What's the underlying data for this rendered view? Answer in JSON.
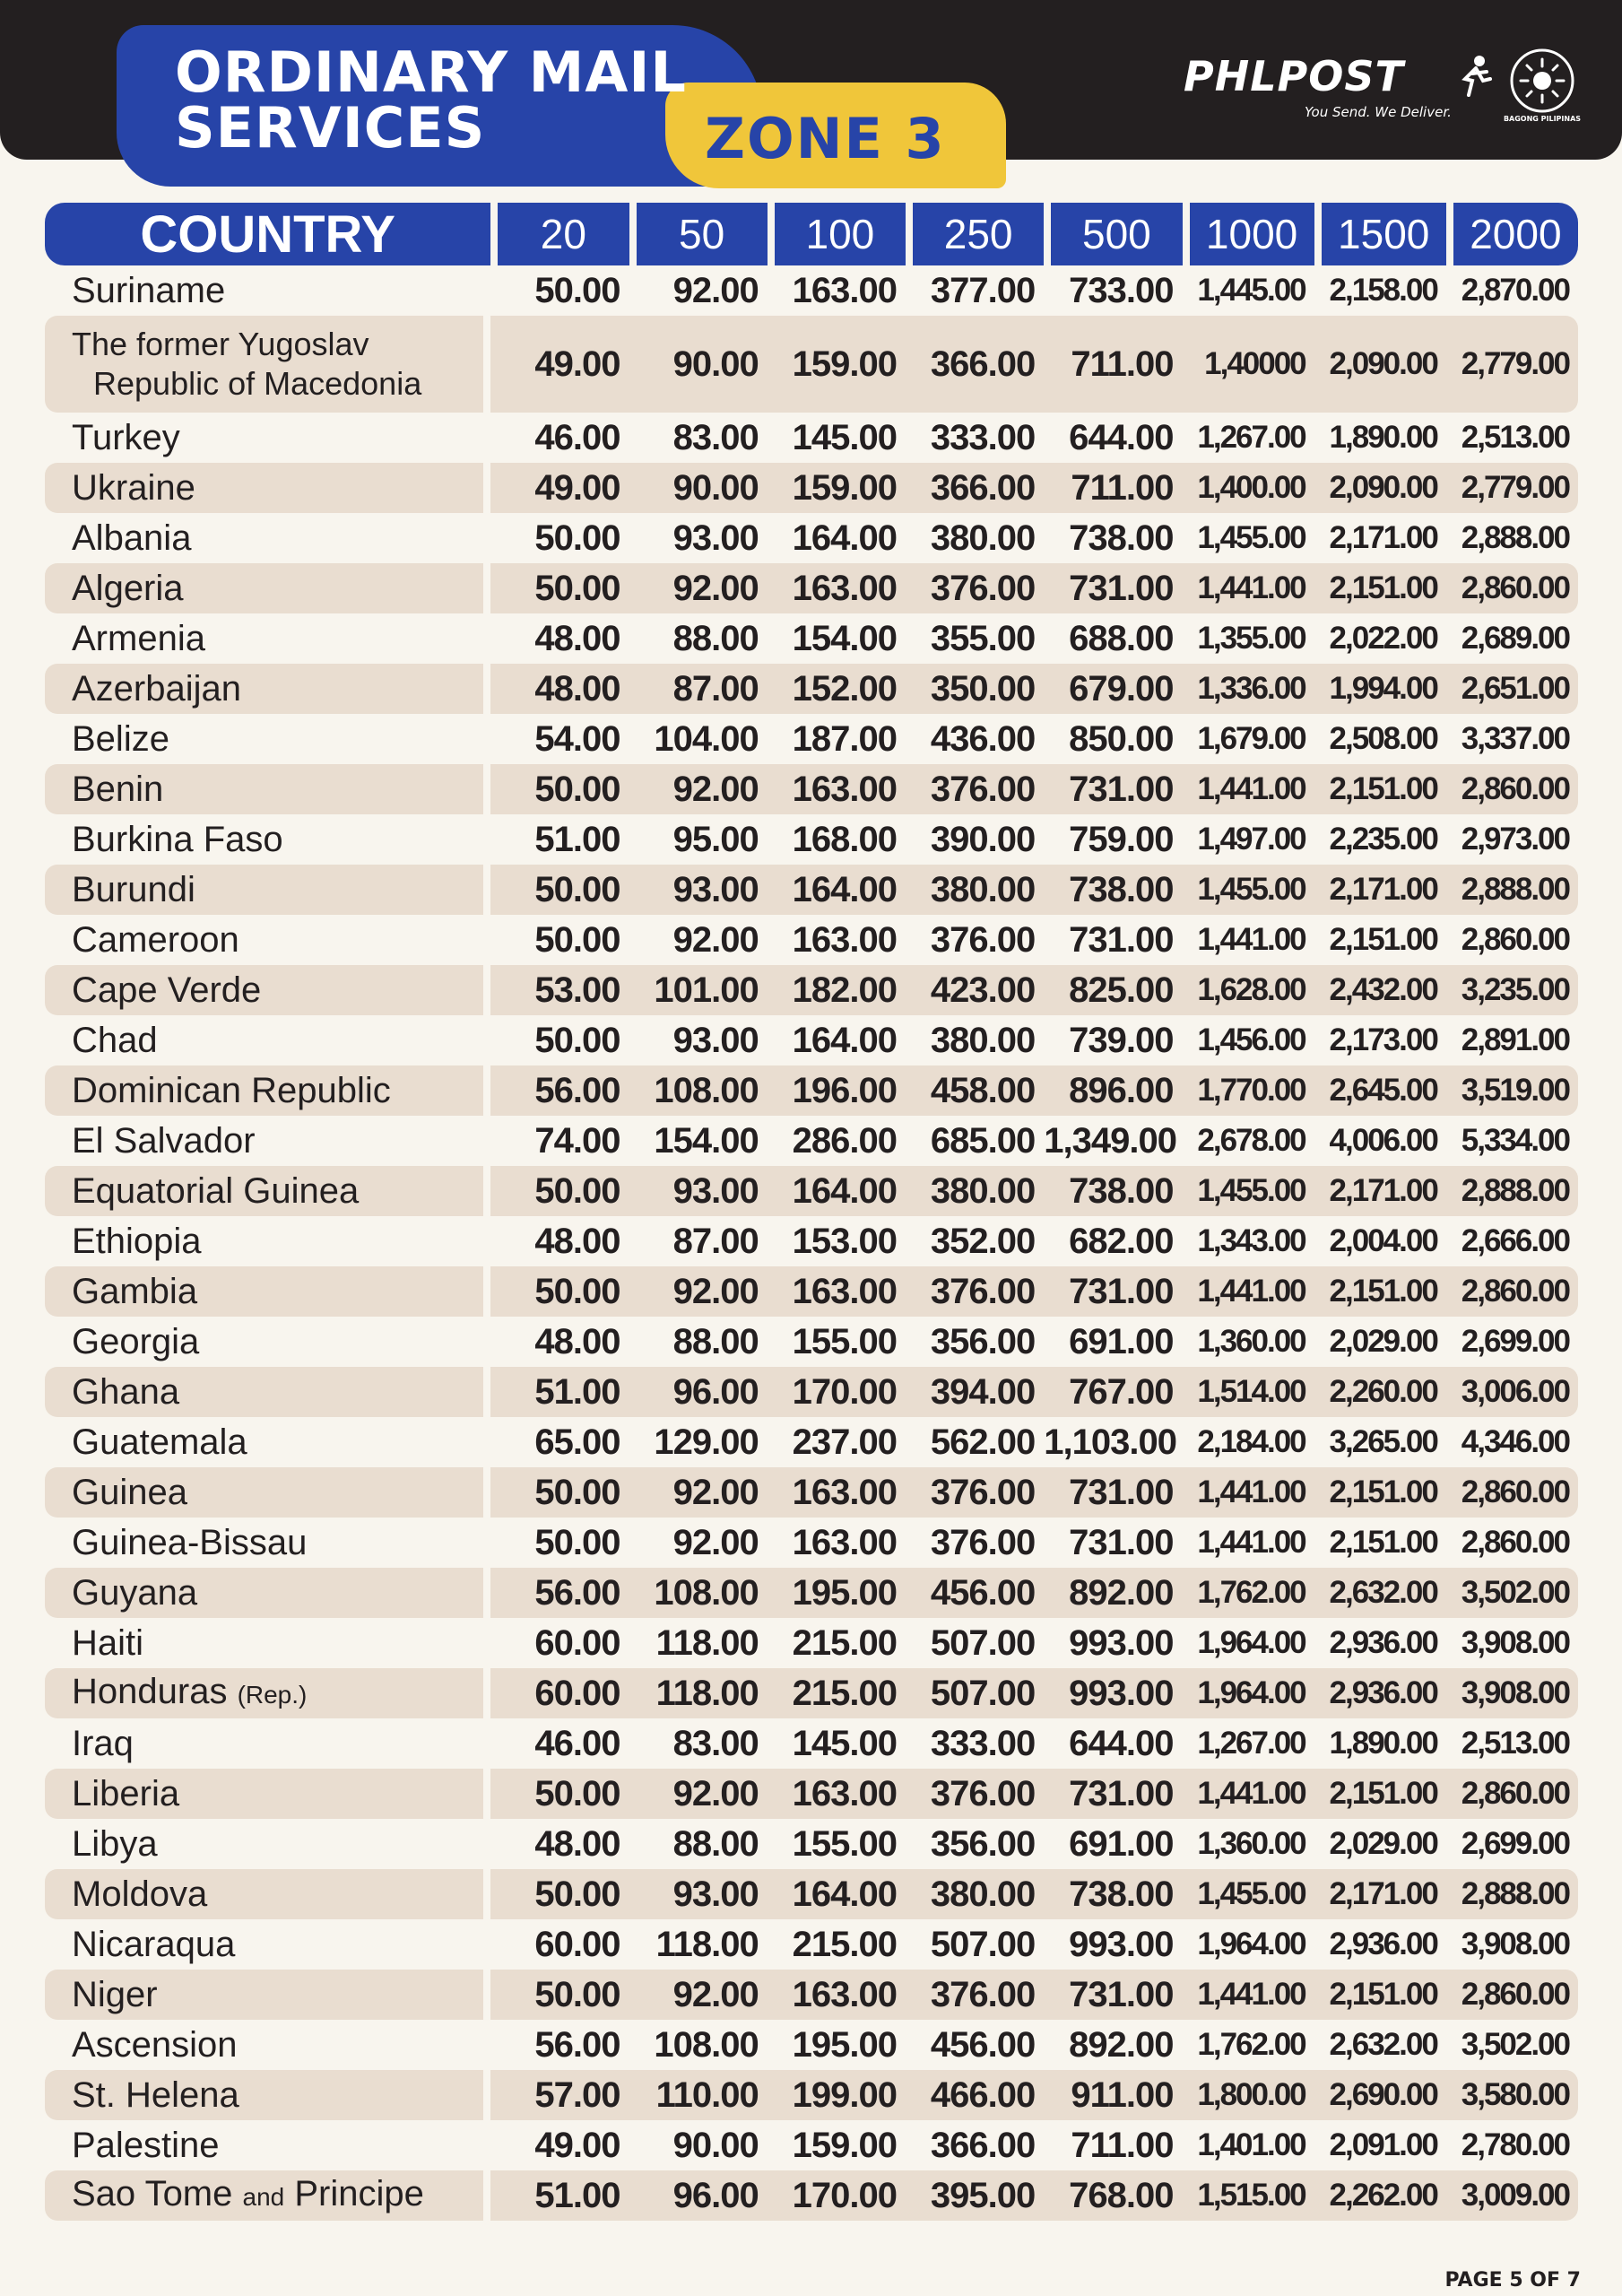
{
  "header": {
    "title_line1": "ORDINARY MAIL",
    "title_line2": "SERVICES",
    "zone": "ZONE 3",
    "brand_name": "PHLPOST",
    "brand_tagline": "You Send. We Deliver.",
    "seal_label": "BAGONG PILIPINAS"
  },
  "table": {
    "columns": [
      "COUNTRY",
      "20",
      "50",
      "100",
      "250",
      "500",
      "1000",
      "1500",
      "2000"
    ],
    "rows": [
      {
        "country": "Suriname",
        "values": [
          "50.00",
          "92.00",
          "163.00",
          "377.00",
          "733.00",
          "1,445.00",
          "2,158.00",
          "2,870.00"
        ]
      },
      {
        "country_line1": "The former Yugoslav",
        "country_line2": "Republic of Macedonia",
        "values": [
          "49.00",
          "90.00",
          "159.00",
          "366.00",
          "711.00",
          "1,40000",
          "2,090.00",
          "2,779.00"
        ]
      },
      {
        "country": "Turkey",
        "values": [
          "46.00",
          "83.00",
          "145.00",
          "333.00",
          "644.00",
          "1,267.00",
          "1,890.00",
          "2,513.00"
        ]
      },
      {
        "country": "Ukraine",
        "values": [
          "49.00",
          "90.00",
          "159.00",
          "366.00",
          "711.00",
          "1,400.00",
          "2,090.00",
          "2,779.00"
        ]
      },
      {
        "country": "Albania",
        "values": [
          "50.00",
          "93.00",
          "164.00",
          "380.00",
          "738.00",
          "1,455.00",
          "2,171.00",
          "2,888.00"
        ]
      },
      {
        "country": "Algeria",
        "values": [
          "50.00",
          "92.00",
          "163.00",
          "376.00",
          "731.00",
          "1,441.00",
          "2,151.00",
          "2,860.00"
        ]
      },
      {
        "country": "Armenia",
        "values": [
          "48.00",
          "88.00",
          "154.00",
          "355.00",
          "688.00",
          "1,355.00",
          "2,022.00",
          "2,689.00"
        ]
      },
      {
        "country": "Azerbaijan",
        "values": [
          "48.00",
          "87.00",
          "152.00",
          "350.00",
          "679.00",
          "1,336.00",
          "1,994.00",
          "2,651.00"
        ]
      },
      {
        "country": "Belize",
        "values": [
          "54.00",
          "104.00",
          "187.00",
          "436.00",
          "850.00",
          "1,679.00",
          "2,508.00",
          "3,337.00"
        ]
      },
      {
        "country": "Benin",
        "values": [
          "50.00",
          "92.00",
          "163.00",
          "376.00",
          "731.00",
          "1,441.00",
          "2,151.00",
          "2,860.00"
        ]
      },
      {
        "country": "Burkina Faso",
        "values": [
          "51.00",
          "95.00",
          "168.00",
          "390.00",
          "759.00",
          "1,497.00",
          "2,235.00",
          "2,973.00"
        ]
      },
      {
        "country": "Burundi",
        "values": [
          "50.00",
          "93.00",
          "164.00",
          "380.00",
          "738.00",
          "1,455.00",
          "2,171.00",
          "2,888.00"
        ]
      },
      {
        "country": "Cameroon",
        "values": [
          "50.00",
          "92.00",
          "163.00",
          "376.00",
          "731.00",
          "1,441.00",
          "2,151.00",
          "2,860.00"
        ]
      },
      {
        "country": "Cape Verde",
        "values": [
          "53.00",
          "101.00",
          "182.00",
          "423.00",
          "825.00",
          "1,628.00",
          "2,432.00",
          "3,235.00"
        ]
      },
      {
        "country": "Chad",
        "values": [
          "50.00",
          "93.00",
          "164.00",
          "380.00",
          "739.00",
          "1,456.00",
          "2,173.00",
          "2,891.00"
        ]
      },
      {
        "country": "Dominican Republic",
        "values": [
          "56.00",
          "108.00",
          "196.00",
          "458.00",
          "896.00",
          "1,770.00",
          "2,645.00",
          "3,519.00"
        ]
      },
      {
        "country": "El Salvador",
        "values": [
          "74.00",
          "154.00",
          "286.00",
          "685.00",
          "1,349.00",
          "2,678.00",
          "4,006.00",
          "5,334.00"
        ]
      },
      {
        "country": "Equatorial Guinea",
        "values": [
          "50.00",
          "93.00",
          "164.00",
          "380.00",
          "738.00",
          "1,455.00",
          "2,171.00",
          "2,888.00"
        ]
      },
      {
        "country": "Ethiopia",
        "values": [
          "48.00",
          "87.00",
          "153.00",
          "352.00",
          "682.00",
          "1,343.00",
          "2,004.00",
          "2,666.00"
        ]
      },
      {
        "country": "Gambia",
        "values": [
          "50.00",
          "92.00",
          "163.00",
          "376.00",
          "731.00",
          "1,441.00",
          "2,151.00",
          "2,860.00"
        ]
      },
      {
        "country": "Georgia",
        "values": [
          "48.00",
          "88.00",
          "155.00",
          "356.00",
          "691.00",
          "1,360.00",
          "2,029.00",
          "2,699.00"
        ]
      },
      {
        "country": "Ghana",
        "values": [
          "51.00",
          "96.00",
          "170.00",
          "394.00",
          "767.00",
          "1,514.00",
          "2,260.00",
          "3,006.00"
        ]
      },
      {
        "country": "Guatemala",
        "values": [
          "65.00",
          "129.00",
          "237.00",
          "562.00",
          "1,103.00",
          "2,184.00",
          "3,265.00",
          "4,346.00"
        ]
      },
      {
        "country": "Guinea",
        "values": [
          "50.00",
          "92.00",
          "163.00",
          "376.00",
          "731.00",
          "1,441.00",
          "2,151.00",
          "2,860.00"
        ]
      },
      {
        "country": "Guinea-Bissau",
        "values": [
          "50.00",
          "92.00",
          "163.00",
          "376.00",
          "731.00",
          "1,441.00",
          "2,151.00",
          "2,860.00"
        ]
      },
      {
        "country": "Guyana",
        "values": [
          "56.00",
          "108.00",
          "195.00",
          "456.00",
          "892.00",
          "1,762.00",
          "2,632.00",
          "3,502.00"
        ]
      },
      {
        "country": "Haiti",
        "values": [
          "60.00",
          "118.00",
          "215.00",
          "507.00",
          "993.00",
          "1,964.00",
          "2,936.00",
          "3,908.00"
        ]
      },
      {
        "country": "Honduras",
        "country_note": "(Rep.)",
        "values": [
          "60.00",
          "118.00",
          "215.00",
          "507.00",
          "993.00",
          "1,964.00",
          "2,936.00",
          "3,908.00"
        ]
      },
      {
        "country": "Iraq",
        "values": [
          "46.00",
          "83.00",
          "145.00",
          "333.00",
          "644.00",
          "1,267.00",
          "1,890.00",
          "2,513.00"
        ]
      },
      {
        "country": "Liberia",
        "values": [
          "50.00",
          "92.00",
          "163.00",
          "376.00",
          "731.00",
          "1,441.00",
          "2,151.00",
          "2,860.00"
        ]
      },
      {
        "country": "Libya",
        "values": [
          "48.00",
          "88.00",
          "155.00",
          "356.00",
          "691.00",
          "1,360.00",
          "2,029.00",
          "2,699.00"
        ]
      },
      {
        "country": "Moldova",
        "values": [
          "50.00",
          "93.00",
          "164.00",
          "380.00",
          "738.00",
          "1,455.00",
          "2,171.00",
          "2,888.00"
        ]
      },
      {
        "country": "Nicaraqua",
        "values": [
          "60.00",
          "118.00",
          "215.00",
          "507.00",
          "993.00",
          "1,964.00",
          "2,936.00",
          "3,908.00"
        ]
      },
      {
        "country": "Niger",
        "values": [
          "50.00",
          "92.00",
          "163.00",
          "376.00",
          "731.00",
          "1,441.00",
          "2,151.00",
          "2,860.00"
        ]
      },
      {
        "country": "Ascension",
        "values": [
          "56.00",
          "108.00",
          "195.00",
          "456.00",
          "892.00",
          "1,762.00",
          "2,632.00",
          "3,502.00"
        ]
      },
      {
        "country": "St. Helena",
        "values": [
          "57.00",
          "110.00",
          "199.00",
          "466.00",
          "911.00",
          "1,800.00",
          "2,690.00",
          "3,580.00"
        ]
      },
      {
        "country": "Palestine",
        "values": [
          "49.00",
          "90.00",
          "159.00",
          "366.00",
          "711.00",
          "1,401.00",
          "2,091.00",
          "2,780.00"
        ]
      },
      {
        "country": "Sao Tome",
        "country_conj": "and",
        "country_tail": "Principe",
        "values": [
          "51.00",
          "96.00",
          "170.00",
          "395.00",
          "768.00",
          "1,515.00",
          "2,262.00",
          "3,009.00"
        ]
      }
    ]
  },
  "footer": {
    "page": "PAGE 5 OF 7"
  },
  "colors": {
    "blue": "#2744a8",
    "yellow": "#f0c63a",
    "dark": "#231f20",
    "stripe": "#e9ddd0",
    "page_bg": "#f8f5ee"
  },
  "icons": [
    "runner-icon",
    "sun-seal-icon"
  ]
}
